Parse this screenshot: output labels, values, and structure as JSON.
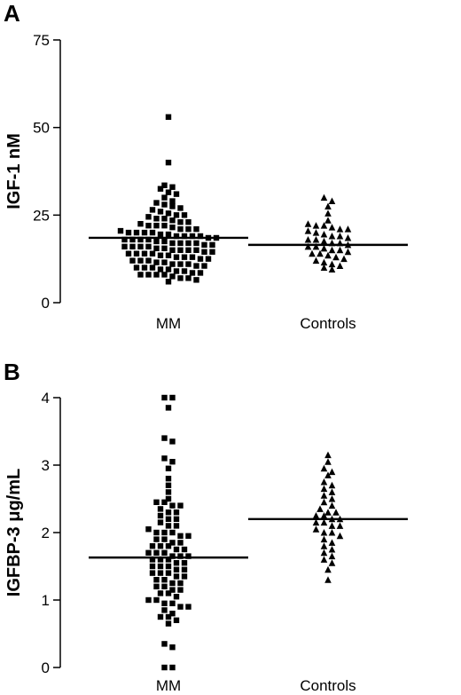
{
  "chart_data": [
    {
      "panel": "A",
      "type": "scatter",
      "title": "",
      "ylabel": "IGF-1 nM",
      "xlabel": "",
      "categories": [
        "MM",
        "Controls"
      ],
      "ylim": [
        0,
        75
      ],
      "yticks": [
        0,
        25,
        50,
        75
      ],
      "grid": false,
      "legend": "none",
      "series": [
        {
          "category": "MM",
          "marker": "square",
          "median": 18.5,
          "values": [
            53,
            40,
            33.5,
            33,
            32.5,
            31.5,
            31,
            30,
            29,
            28.5,
            28,
            27.5,
            27,
            26.5,
            26,
            25.5,
            25,
            25,
            24.5,
            24,
            24,
            23.5,
            23,
            23,
            22.5,
            22,
            22,
            22,
            21.5,
            21,
            21,
            21,
            20.5,
            20,
            20,
            20,
            20,
            19.5,
            19.5,
            19,
            19,
            19,
            19,
            18.5,
            18.5,
            18,
            18,
            18,
            18,
            17.5,
            17.5,
            17,
            17,
            17,
            17,
            16.5,
            16.5,
            16,
            16,
            16,
            16,
            15.5,
            15.5,
            15,
            15,
            15,
            15,
            14.5,
            14.5,
            14,
            14,
            14,
            14,
            13.5,
            13.5,
            13,
            13,
            13,
            12.5,
            12.5,
            12,
            12,
            12,
            11.5,
            11.5,
            11,
            11,
            11,
            10.5,
            10.5,
            10,
            10,
            10,
            9.5,
            9.5,
            9,
            9,
            8.5,
            8.5,
            8,
            8,
            8,
            8,
            7.5,
            7,
            7,
            6.5,
            6
          ]
        },
        {
          "category": "Controls",
          "marker": "triangle",
          "median": 16.5,
          "values": [
            30,
            29,
            27.5,
            25.5,
            23.5,
            22.5,
            22,
            22,
            21.5,
            21,
            21,
            20.5,
            20,
            19.5,
            19,
            19,
            18.5,
            18,
            18,
            17.5,
            17,
            17,
            16.5,
            16,
            16,
            15.5,
            15,
            15,
            14.5,
            14,
            14,
            13.5,
            13,
            12.5,
            12,
            11.5,
            11,
            10.5,
            10,
            9.5
          ]
        }
      ]
    },
    {
      "panel": "B",
      "type": "scatter",
      "title": "",
      "ylabel": "IGFBP-3 μg/mL",
      "xlabel": "",
      "categories": [
        "MM",
        "Controls"
      ],
      "ylim": [
        0,
        4
      ],
      "yticks": [
        0,
        1,
        2,
        3,
        4
      ],
      "grid": false,
      "legend": "none",
      "series": [
        {
          "category": "MM",
          "marker": "square",
          "median": 1.63,
          "values": [
            4.0,
            4.0,
            3.85,
            3.4,
            3.35,
            3.1,
            3.05,
            2.95,
            2.8,
            2.7,
            2.6,
            2.5,
            2.45,
            2.45,
            2.4,
            2.4,
            2.35,
            2.3,
            2.3,
            2.25,
            2.2,
            2.2,
            2.15,
            2.1,
            2.1,
            2.05,
            2.0,
            2.0,
            2.0,
            1.95,
            1.95,
            1.9,
            1.9,
            1.85,
            1.85,
            1.8,
            1.8,
            1.8,
            1.75,
            1.75,
            1.7,
            1.7,
            1.7,
            1.65,
            1.65,
            1.65,
            1.6,
            1.6,
            1.6,
            1.55,
            1.55,
            1.5,
            1.5,
            1.5,
            1.45,
            1.45,
            1.4,
            1.4,
            1.4,
            1.35,
            1.35,
            1.3,
            1.3,
            1.25,
            1.25,
            1.2,
            1.2,
            1.15,
            1.15,
            1.1,
            1.1,
            1.05,
            1.0,
            1.0,
            0.95,
            0.95,
            0.9,
            0.9,
            0.85,
            0.8,
            0.75,
            0.75,
            0.7,
            0.65,
            0.35,
            0.3,
            0.0,
            0.0
          ]
        },
        {
          "category": "Controls",
          "marker": "triangle",
          "median": 2.2,
          "values": [
            3.15,
            3.05,
            2.95,
            2.9,
            2.85,
            2.75,
            2.7,
            2.65,
            2.6,
            2.55,
            2.5,
            2.45,
            2.4,
            2.35,
            2.3,
            2.3,
            2.25,
            2.25,
            2.2,
            2.2,
            2.15,
            2.15,
            2.1,
            2.1,
            2.05,
            2.0,
            2.0,
            1.95,
            1.9,
            1.85,
            1.8,
            1.75,
            1.7,
            1.65,
            1.6,
            1.55,
            1.45,
            1.3
          ]
        }
      ]
    }
  ]
}
